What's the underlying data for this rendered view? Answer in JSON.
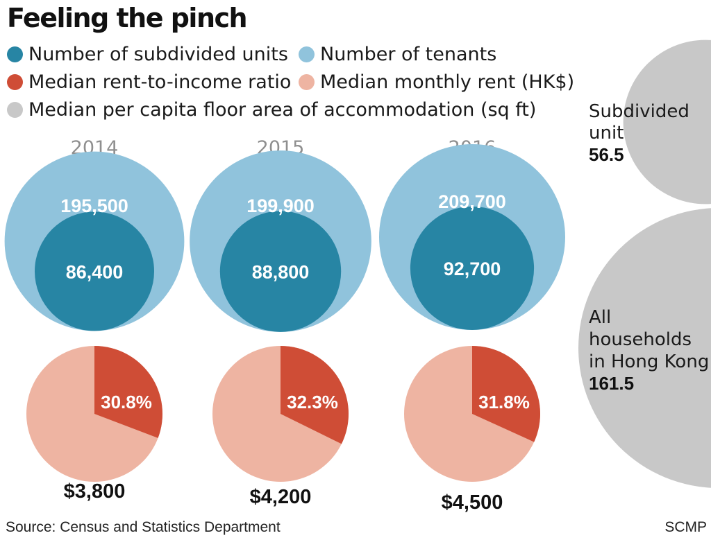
{
  "title": "Feeling the pinch",
  "colors": {
    "units": "#2785a4",
    "tenants": "#90c3dc",
    "ratio": "#cf4d36",
    "rent": "#eeb4a2",
    "area": "#c8c8c8",
    "year_label": "#8f8f8f",
    "white": "#ffffff"
  },
  "legend": [
    {
      "label": "Number of subdivided units",
      "color": "#2785a4"
    },
    {
      "label": "Number of tenants",
      "color": "#90c3dc"
    },
    {
      "label": "Median rent-to-income ratio",
      "color": "#cf4d36"
    },
    {
      "label": "Median monthly rent (HK$)",
      "color": "#eeb4a2"
    },
    {
      "label": "Median per capita floor area of accommodation (sq ft)",
      "color": "#c8c8c8"
    }
  ],
  "chart_data": {
    "type": "proportional-circles-and-pies",
    "title": "Feeling the pinch",
    "years": [
      "2014",
      "2015",
      "2016"
    ],
    "series": [
      {
        "name": "Number of subdivided units",
        "values": [
          86400,
          88800,
          92700
        ],
        "labels": [
          "86,400",
          "88,800",
          "92,700"
        ]
      },
      {
        "name": "Number of tenants",
        "values": [
          195500,
          199900,
          209700
        ],
        "labels": [
          "195,500",
          "199,900",
          "209,700"
        ]
      },
      {
        "name": "Median rent-to-income ratio",
        "values": [
          30.8,
          32.3,
          31.8
        ],
        "labels": [
          "30.8%",
          "32.3%",
          "31.8%"
        ]
      },
      {
        "name": "Median monthly rent (HK$)",
        "values": [
          3800,
          4200,
          4500
        ],
        "labels": [
          "$3,800",
          "$4,200",
          "$4,500"
        ]
      }
    ],
    "floor_area": {
      "name": "Median per capita floor area of accommodation (sq ft)",
      "items": [
        {
          "lines": [
            "Subdivided",
            "unit"
          ],
          "value": 56.5,
          "value_label": "56.5"
        },
        {
          "lines": [
            "All",
            "households",
            "in Hong Kong"
          ],
          "value": 161.5,
          "value_label": "161.5"
        }
      ]
    }
  },
  "footer": {
    "source": "Source: Census and Statistics Department",
    "credit": "SCMP"
  }
}
